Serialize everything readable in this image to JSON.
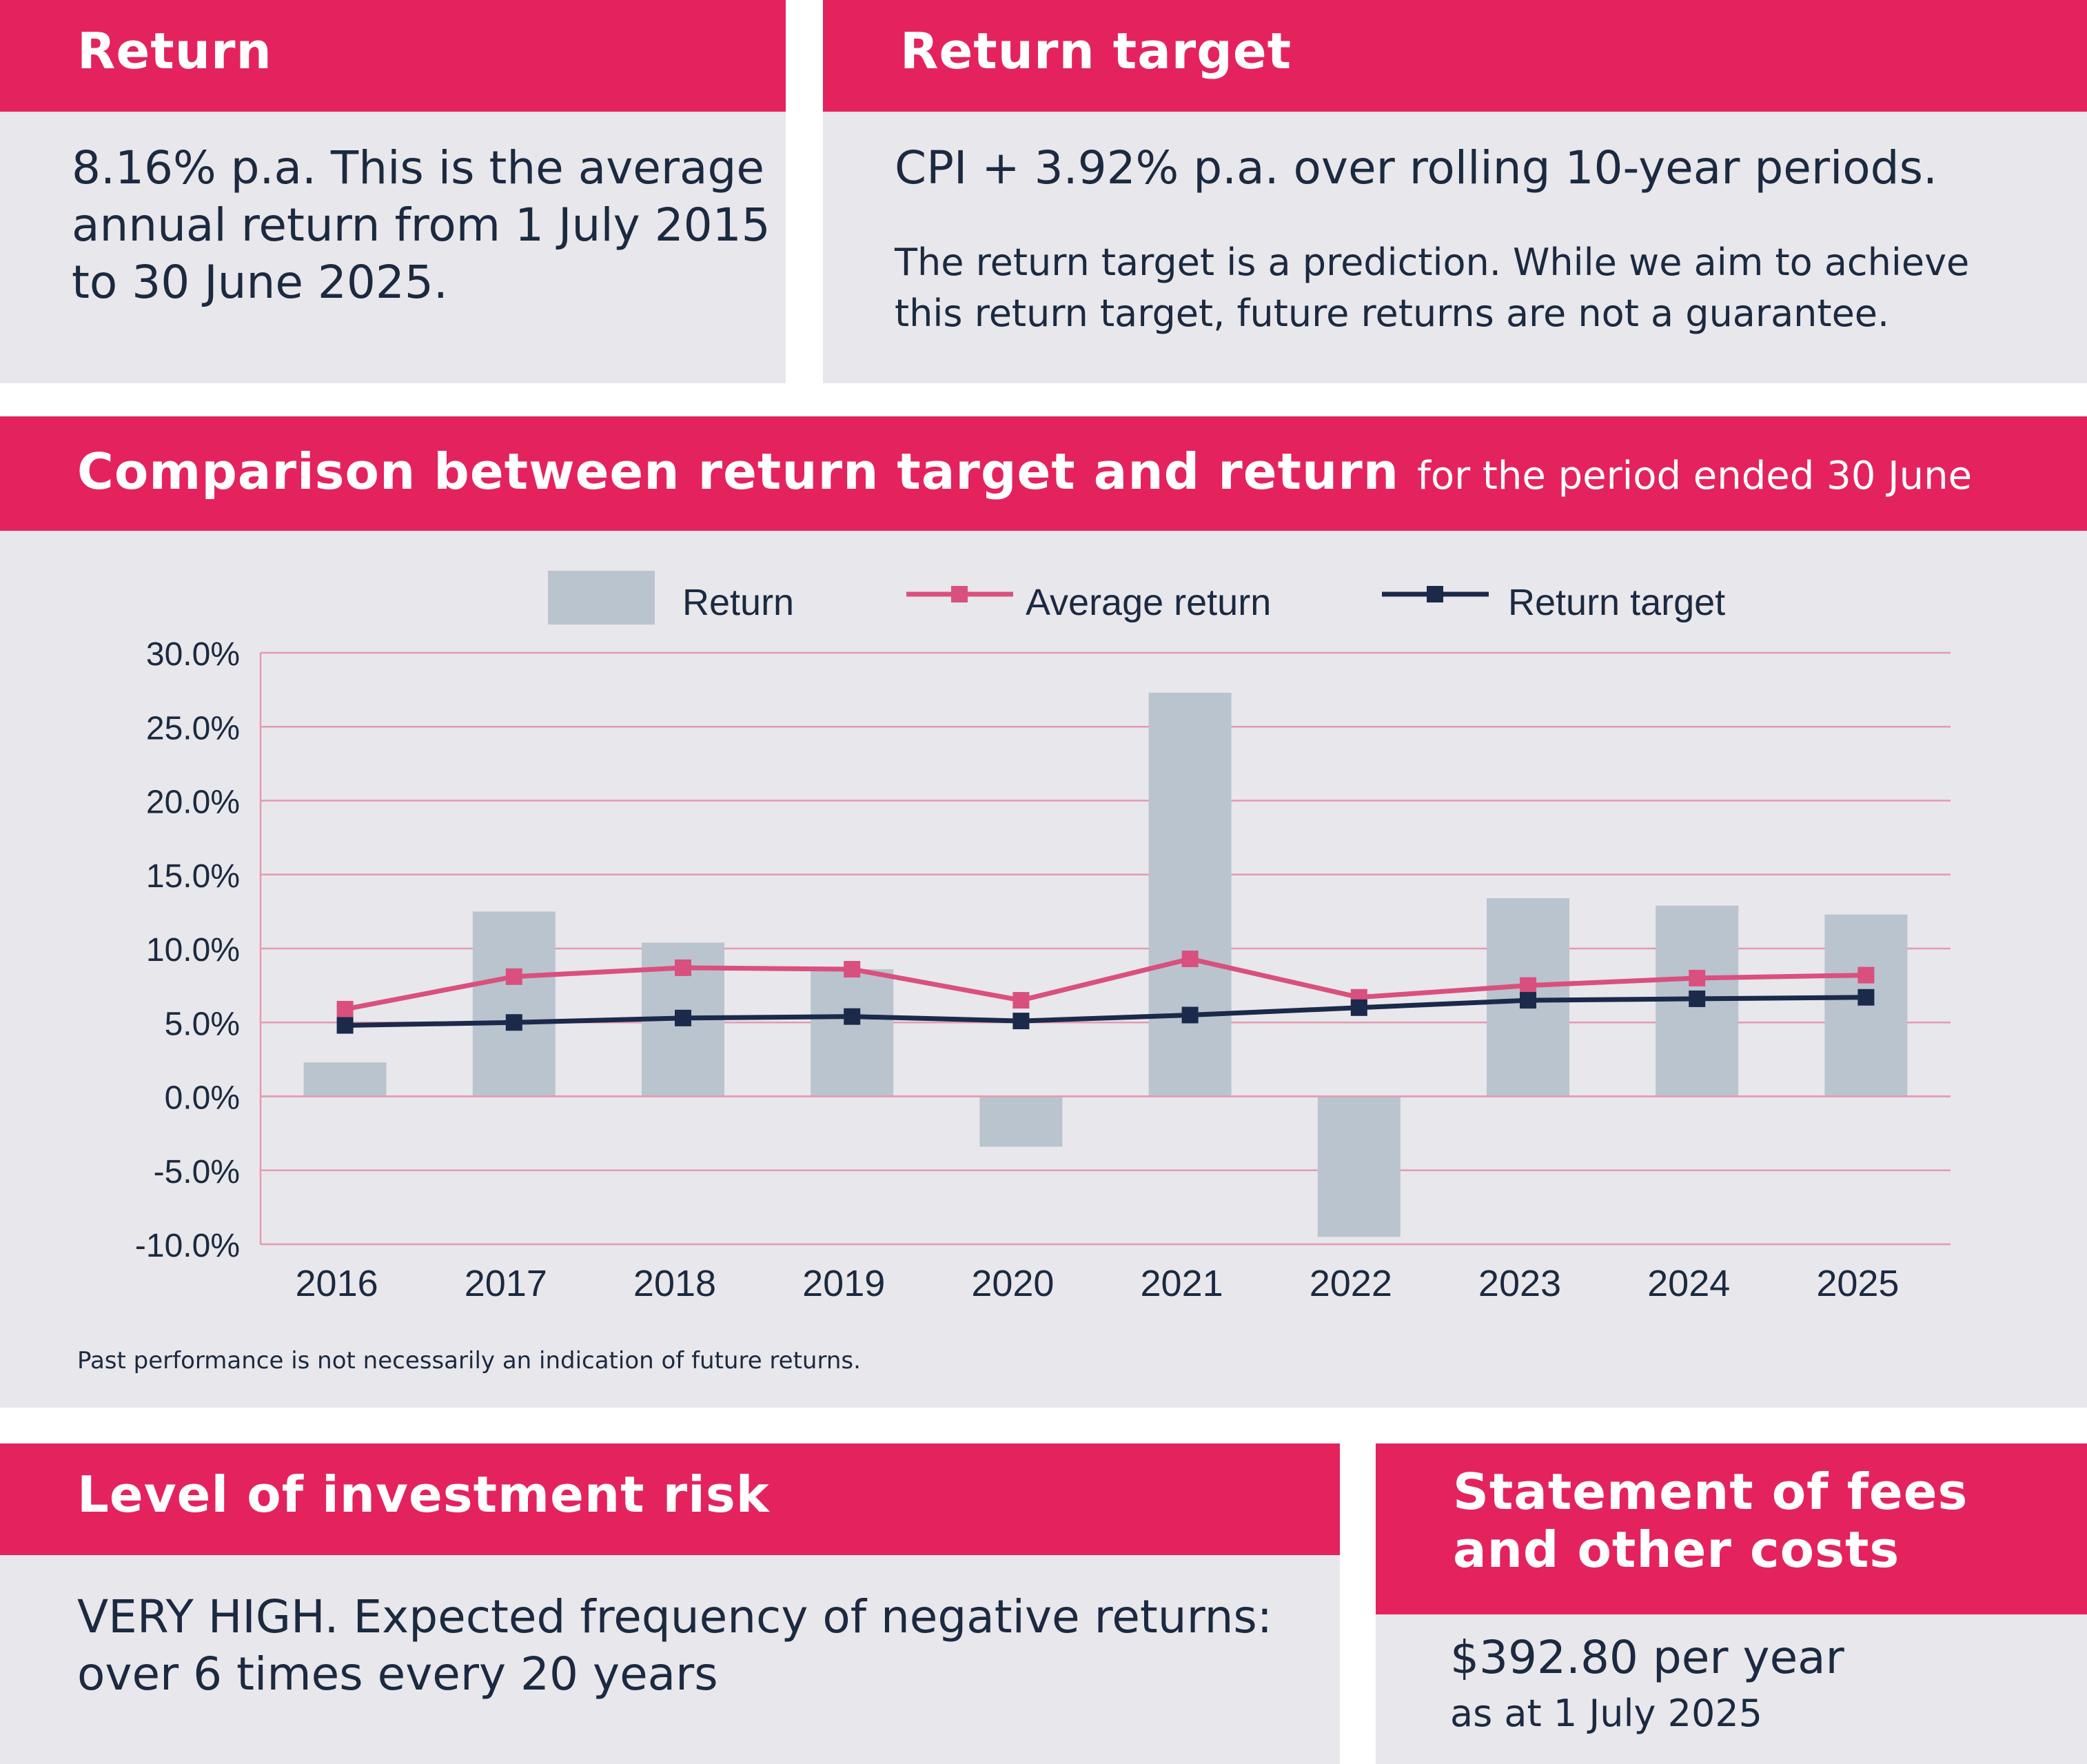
{
  "return_panel": {
    "title": "Return",
    "text": "8.16% p.a. This is the average annual return from 1 July 2015 to 30 June 2025."
  },
  "target_panel": {
    "title": "Return target",
    "headline": "CPI + 3.92% p.a. over rolling 10-year periods.",
    "note": "The return target is a prediction. While we aim to achieve this return target, future returns are not a guarantee."
  },
  "chart_panel": {
    "title": "Comparison between return target and return",
    "subtitle": "for the period ended 30 June",
    "footnote": "Past performance is not necessarily an indication of future returns."
  },
  "chart_data": {
    "type": "bar",
    "categories": [
      "2016",
      "2017",
      "2018",
      "2019",
      "2020",
      "2021",
      "2022",
      "2023",
      "2024",
      "2025"
    ],
    "series": [
      {
        "name": "Return",
        "type": "bar",
        "color": "#bac4ce",
        "values": [
          2.3,
          12.5,
          10.4,
          8.6,
          -3.4,
          27.3,
          -9.5,
          13.4,
          12.9,
          12.3
        ]
      },
      {
        "name": "Average return",
        "type": "line",
        "color": "#d9507e",
        "values": [
          5.9,
          8.1,
          8.7,
          8.6,
          6.5,
          9.3,
          6.7,
          7.5,
          8.0,
          8.2
        ]
      },
      {
        "name": "Return target",
        "type": "line",
        "color": "#1b2a4b",
        "values": [
          4.8,
          5.0,
          5.3,
          5.4,
          5.1,
          5.5,
          6.0,
          6.5,
          6.6,
          6.7
        ]
      }
    ],
    "ylim": [
      -10,
      30
    ],
    "yticks": [
      30,
      25,
      20,
      15,
      10,
      5,
      0,
      -5,
      -10
    ],
    "ytick_labels": [
      "30.0%",
      "25.0%",
      "20.0%",
      "15.0%",
      "10.0%",
      "5.0%",
      "0.0%",
      "-5.0%",
      "-10.0%"
    ],
    "grid": true,
    "legend": "top"
  },
  "risk_panel": {
    "title": "Level of investment risk",
    "text": "VERY HIGH. Expected frequency of negative returns: over 6 times every 20 years"
  },
  "fees_panel": {
    "title": "Statement of fees and other costs",
    "amount": "$392.80 per year",
    "as_at": "as at 1 July 2025"
  }
}
